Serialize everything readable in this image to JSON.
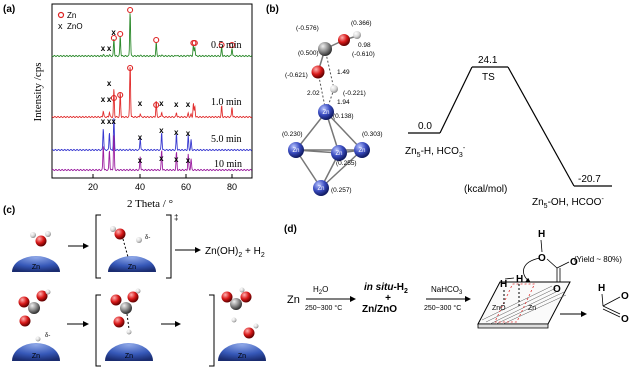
{
  "panels": {
    "a": "(a)",
    "b": "(b)",
    "c": "(c)",
    "d": "(d)"
  },
  "xrd": {
    "ylabel": "Intensity /cps",
    "xlabel": "2 Theta / °",
    "xticks": [
      "20",
      "40",
      "60",
      "80"
    ],
    "legend": [
      {
        "marker": "o",
        "label": "Zn",
        "color": "#dd2222"
      },
      {
        "marker": "x",
        "label": "ZnO",
        "color": "#000000"
      }
    ],
    "traces": [
      {
        "label": "0.5 min",
        "color": "#2e8b2e"
      },
      {
        "label": "1.0 min",
        "color": "#e23030"
      },
      {
        "label": "5.0 min",
        "color": "#3a3ad0"
      },
      {
        "label": "10 min",
        "color": "#9c1fa0"
      }
    ]
  },
  "energy": {
    "reactant": "0.0",
    "ts_value": "24.1",
    "ts_label": "TS",
    "product": "-20.7",
    "reactant_label": "Zn",
    "reactant_label_sub": "5",
    "reactant_label_rest": "-H, HCO",
    "reactant_label_sub2": "3",
    "reactant_label_sup": "-",
    "product_label": "Zn",
    "product_label_sub": "5",
    "product_label_rest": "-OH, HCOO",
    "product_label_sup": "-",
    "units": "(kcal/mol)"
  },
  "structure": {
    "charges": [
      "(-0.576)",
      "(0.366)",
      "(0.500)",
      "0.98",
      "(-0.610)",
      "(-0.621)",
      "1.49",
      "(-0.221)",
      "2.02",
      "1.94",
      "(0.138)",
      "(0.230)",
      "(0.303)",
      "(0.255)",
      "(0.257)"
    ],
    "atoms": {
      "carbon": "C",
      "hydrogen": "H",
      "zinc": "Zn"
    }
  },
  "mechanism_c": {
    "atom_zn": "Zn",
    "product": "Zn(OH)",
    "product_sub": "2",
    "product_plus": " + H",
    "product_sub2": "2",
    "delta": "δ-"
  },
  "mechanism_d": {
    "start": "Zn",
    "step1_top": "H",
    "step1_top_sub": "2",
    "step1_top_end": "O",
    "step1_bottom": "250~300 °C",
    "intermediate_line1_a": "in situ",
    "intermediate_line1_b": "-H",
    "intermediate_line1_sub": "2",
    "intermediate_plus": "+",
    "intermediate_line2": "Zn/ZnO",
    "step2_top": "NaHCO",
    "step2_top_sub": "3",
    "step2_bottom": "250~300 °C",
    "surface_zno": "ZnO",
    "surface_zn": "Zn",
    "yield": "(Yield ~ 80%)",
    "h": "H",
    "o": "O"
  }
}
